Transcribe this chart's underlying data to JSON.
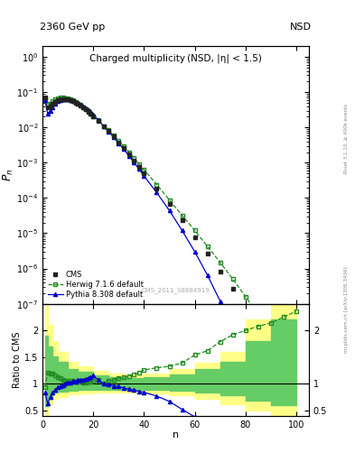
{
  "title_top": "2360 GeV pp",
  "title_top_right": "NSD",
  "main_title": "Charged multiplicity (NSD, |η| < 1.5)",
  "ylabel_main": "$P_n$",
  "ylabel_ratio": "Ratio to CMS",
  "xlabel": "n",
  "watermark": "CMS_2011_S8884919",
  "right_label": "mcplots.cern.ch [arXiv:1306.3436]",
  "right_label2": "Rivet 3.1.10, ≥ 400k events",
  "cms_x": [
    1,
    2,
    3,
    4,
    5,
    6,
    7,
    8,
    9,
    10,
    11,
    12,
    13,
    14,
    15,
    16,
    17,
    18,
    19,
    20,
    22,
    24,
    26,
    28,
    30,
    32,
    34,
    36,
    38,
    40,
    45,
    50,
    55,
    60,
    65,
    70,
    75,
    80,
    85,
    90,
    95,
    100
  ],
  "cms_y": [
    0.072,
    0.038,
    0.04,
    0.046,
    0.053,
    0.059,
    0.063,
    0.064,
    0.064,
    0.062,
    0.059,
    0.055,
    0.051,
    0.046,
    0.041,
    0.037,
    0.032,
    0.028,
    0.024,
    0.02,
    0.015,
    0.011,
    0.0078,
    0.0055,
    0.0038,
    0.0026,
    0.00175,
    0.00117,
    0.00077,
    0.0005,
    0.000185,
    6.6e-05,
    2.3e-05,
    7.8e-06,
    2.6e-06,
    8.4e-07,
    2.6e-07,
    8e-08,
    2.4e-08,
    7e-09,
    2e-09,
    5.5e-10
  ],
  "herwig_x": [
    1,
    2,
    3,
    4,
    5,
    6,
    7,
    8,
    9,
    10,
    11,
    12,
    13,
    14,
    15,
    16,
    17,
    18,
    19,
    20,
    22,
    24,
    26,
    28,
    30,
    32,
    34,
    36,
    38,
    40,
    45,
    50,
    55,
    60,
    65,
    70,
    75,
    80,
    85,
    90,
    95,
    100
  ],
  "herwig_y": [
    0.068,
    0.046,
    0.048,
    0.055,
    0.061,
    0.066,
    0.069,
    0.069,
    0.068,
    0.066,
    0.062,
    0.058,
    0.053,
    0.048,
    0.043,
    0.038,
    0.033,
    0.029,
    0.025,
    0.021,
    0.016,
    0.011,
    0.0083,
    0.0059,
    0.0042,
    0.0029,
    0.002,
    0.00137,
    0.00093,
    0.00063,
    0.00024,
    8.8e-05,
    3.2e-05,
    1.2e-05,
    4.2e-06,
    1.5e-06,
    5e-07,
    1.6e-07,
    5e-08,
    1.5e-08,
    4.5e-09,
    1.3e-09
  ],
  "pythia_x": [
    1,
    2,
    3,
    4,
    5,
    6,
    7,
    8,
    9,
    10,
    11,
    12,
    13,
    14,
    15,
    16,
    17,
    18,
    19,
    20,
    22,
    24,
    26,
    28,
    30,
    32,
    34,
    36,
    38,
    40,
    45,
    50,
    55,
    60,
    65,
    70,
    75,
    80,
    85,
    90,
    95,
    100
  ],
  "pythia_y": [
    0.06,
    0.024,
    0.03,
    0.038,
    0.047,
    0.055,
    0.06,
    0.063,
    0.064,
    0.063,
    0.06,
    0.057,
    0.053,
    0.049,
    0.044,
    0.04,
    0.035,
    0.031,
    0.027,
    0.023,
    0.016,
    0.011,
    0.0077,
    0.0053,
    0.0036,
    0.0024,
    0.00158,
    0.00103,
    0.00066,
    0.00042,
    0.000142,
    4.4e-05,
    1.2e-05,
    3e-06,
    6.5e-07,
    1.2e-07,
    1.8e-08,
    2.2e-09,
    2.2e-10,
    1.8e-11,
    1.2e-12,
    6e-14
  ],
  "herwig_ratio_x": [
    1,
    2,
    3,
    4,
    5,
    6,
    7,
    8,
    9,
    10,
    11,
    12,
    13,
    14,
    15,
    16,
    17,
    18,
    19,
    20,
    22,
    24,
    26,
    28,
    30,
    32,
    34,
    36,
    38,
    40,
    45,
    50,
    55,
    60,
    65,
    70,
    75,
    80,
    85,
    90,
    95,
    100
  ],
  "herwig_ratio_y": [
    0.94,
    1.21,
    1.2,
    1.2,
    1.15,
    1.12,
    1.1,
    1.08,
    1.06,
    1.06,
    1.05,
    1.05,
    1.04,
    1.04,
    1.05,
    1.03,
    1.03,
    1.04,
    1.04,
    1.05,
    1.07,
    1.0,
    1.06,
    1.07,
    1.11,
    1.12,
    1.14,
    1.17,
    1.21,
    1.26,
    1.3,
    1.33,
    1.39,
    1.54,
    1.62,
    1.79,
    1.92,
    2.0,
    2.08,
    2.14,
    2.25,
    2.36
  ],
  "pythia_ratio_x": [
    1,
    2,
    3,
    4,
    5,
    6,
    7,
    8,
    9,
    10,
    11,
    12,
    13,
    14,
    15,
    16,
    17,
    18,
    19,
    20,
    22,
    24,
    26,
    28,
    30,
    32,
    34,
    36,
    38,
    40,
    45,
    50,
    55,
    60,
    65,
    70,
    75,
    80
  ],
  "pythia_ratio_y": [
    0.83,
    0.63,
    0.75,
    0.83,
    0.89,
    0.93,
    0.95,
    0.98,
    1.0,
    1.02,
    1.02,
    1.05,
    1.04,
    1.07,
    1.07,
    1.08,
    1.09,
    1.11,
    1.13,
    1.15,
    1.07,
    1.0,
    0.99,
    0.96,
    0.95,
    0.92,
    0.9,
    0.88,
    0.86,
    0.84,
    0.77,
    0.67,
    0.52,
    0.38,
    0.25,
    0.14,
    0.069,
    0.028
  ],
  "yellow_band_x": [
    1,
    2,
    4,
    6,
    10,
    14,
    20,
    26,
    32,
    40,
    50,
    60,
    70,
    80,
    90,
    100
  ],
  "yellow_band_lo": [
    0.4,
    0.62,
    0.72,
    0.76,
    0.8,
    0.82,
    0.84,
    0.84,
    0.84,
    0.82,
    0.78,
    0.72,
    0.62,
    0.5,
    0.4,
    0.4
  ],
  "yellow_band_hi": [
    2.5,
    2.1,
    1.8,
    1.6,
    1.42,
    1.32,
    1.24,
    1.2,
    1.18,
    1.2,
    1.28,
    1.4,
    1.6,
    2.2,
    2.5,
    2.5
  ],
  "green_band_x": [
    1,
    2,
    4,
    6,
    10,
    14,
    20,
    26,
    32,
    40,
    50,
    60,
    70,
    80,
    90,
    100
  ],
  "green_band_lo": [
    0.58,
    0.76,
    0.83,
    0.85,
    0.87,
    0.88,
    0.89,
    0.89,
    0.89,
    0.88,
    0.87,
    0.84,
    0.78,
    0.68,
    0.6,
    0.6
  ],
  "green_band_hi": [
    1.9,
    1.7,
    1.52,
    1.42,
    1.28,
    1.22,
    1.16,
    1.13,
    1.11,
    1.13,
    1.18,
    1.27,
    1.42,
    1.8,
    2.2,
    2.2
  ],
  "ylim_main": [
    1e-07,
    2.0
  ],
  "ylim_ratio": [
    0.4,
    2.5
  ],
  "xlim": [
    0,
    105
  ],
  "ratio_yticks": [
    0.5,
    1.0,
    1.5,
    2.0
  ],
  "cms_color": "#222222",
  "herwig_color": "#228B22",
  "pythia_color": "#0000cc",
  "green_band_color": "#66cc66",
  "yellow_band_color": "#ffff88"
}
